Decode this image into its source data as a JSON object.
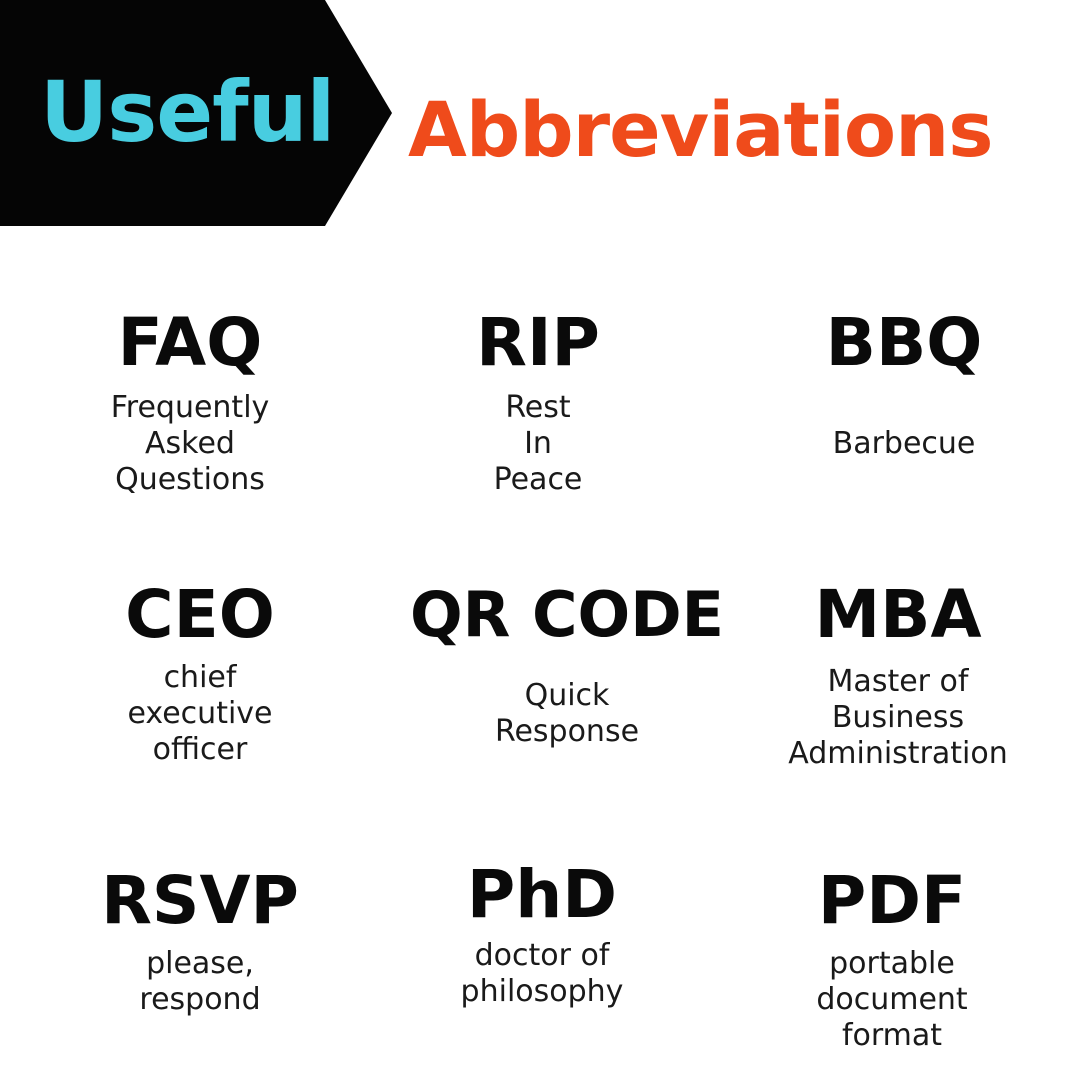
{
  "title": {
    "word1": "Useful",
    "word2": "Abbreviations"
  },
  "colors": {
    "banner": "#050505",
    "accent_cyan": "#48cde0",
    "accent_orange": "#ef4b1b",
    "text": "#111111"
  },
  "items": [
    {
      "abbr": "FAQ",
      "lines": [
        "Frequently",
        "Asked",
        "Questions"
      ]
    },
    {
      "abbr": "RIP",
      "lines": [
        "Rest",
        "In",
        "Peace"
      ]
    },
    {
      "abbr": "BBQ",
      "lines": [
        "Barbecue"
      ]
    },
    {
      "abbr": "CEO",
      "lines": [
        "chief",
        "executive",
        "officer"
      ]
    },
    {
      "abbr": "QR CODE",
      "lines": [
        "Quick",
        "Response"
      ]
    },
    {
      "abbr": "MBA",
      "lines": [
        "Master of",
        "Business",
        "Administration"
      ]
    },
    {
      "abbr": "RSVP",
      "lines": [
        "please,",
        "respond"
      ]
    },
    {
      "abbr": "PhD",
      "lines": [
        "doctor of",
        "philosophy"
      ]
    },
    {
      "abbr": "PDF",
      "lines": [
        "portable",
        "document",
        "format"
      ]
    }
  ]
}
